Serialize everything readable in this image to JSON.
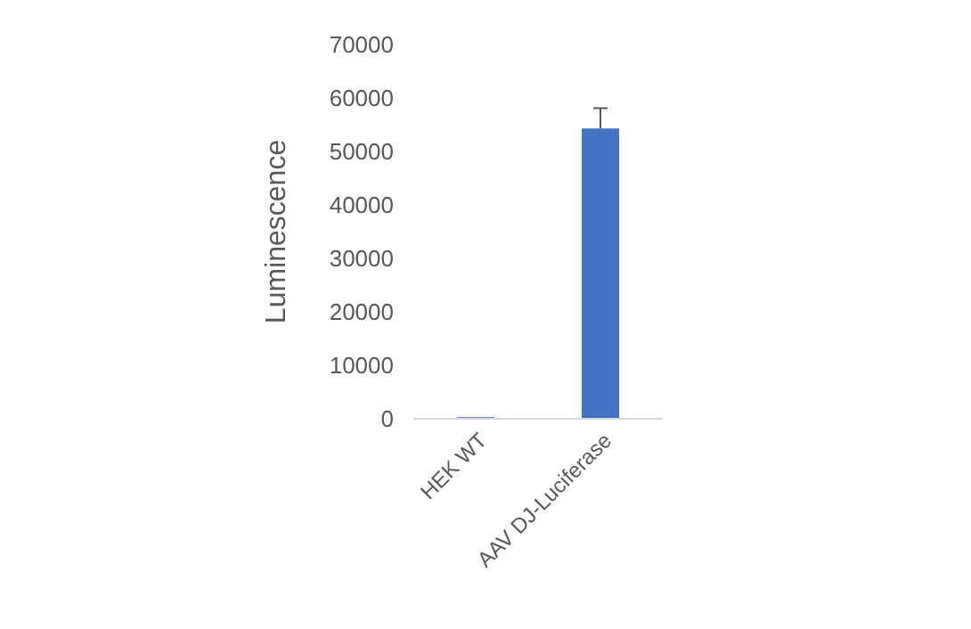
{
  "chart_data": {
    "type": "bar",
    "ylabel": "Luminescence",
    "categories": [
      "HEK WT",
      "AAV DJ-Luciferase"
    ],
    "values": [
      300,
      54300
    ],
    "errors": [
      null,
      [
        54300,
        58100
      ]
    ],
    "color": "#4472c4",
    "ylim": [
      0,
      70000
    ],
    "yticks": [
      0,
      10000,
      20000,
      30000,
      40000,
      50000,
      60000,
      70000
    ],
    "grid": false
  }
}
